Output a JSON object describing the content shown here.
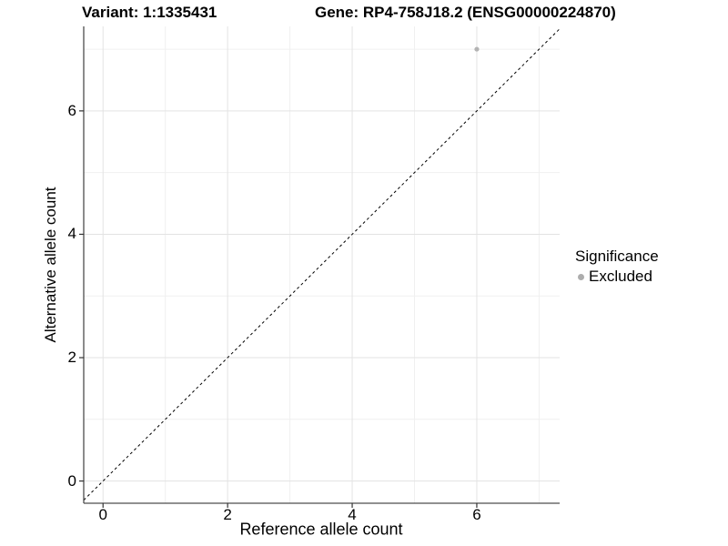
{
  "chart_data": {
    "type": "scatter",
    "titles": {
      "left": "Variant: 1:1335431",
      "right": "Gene: RP4-758J18.2 (ENSG00000224870)"
    },
    "xlabel": "Reference allele count",
    "ylabel": "Alternative allele count",
    "xlim": [
      -0.31,
      7.33
    ],
    "ylim": [
      -0.36,
      7.37
    ],
    "x_ticks": [
      0,
      2,
      4,
      6
    ],
    "y_ticks": [
      0,
      2,
      4,
      6
    ],
    "x_minor_gridlines": [
      1,
      3,
      5,
      7
    ],
    "y_minor_gridlines": [
      1,
      3,
      5,
      7
    ],
    "grid": "major and minor light gray gridlines on white background",
    "points": [
      {
        "x": 6,
        "y": 7,
        "significance": "Excluded"
      }
    ],
    "identity_line": {
      "equation": "y = x",
      "style": "dashed"
    },
    "legend": {
      "title": "Significance",
      "position": "right-center",
      "items": [
        {
          "label": "Excluded",
          "color": "#adadad",
          "marker": "circle"
        }
      ]
    },
    "colors": {
      "point": "#b3b3b3",
      "grid_major": "#e3e3e3",
      "grid_minor": "#f0f0f0",
      "axis_line": "#4d4d4d",
      "tick_mark": "#333333",
      "dashed_line": "#000000",
      "text": "#000000"
    }
  }
}
